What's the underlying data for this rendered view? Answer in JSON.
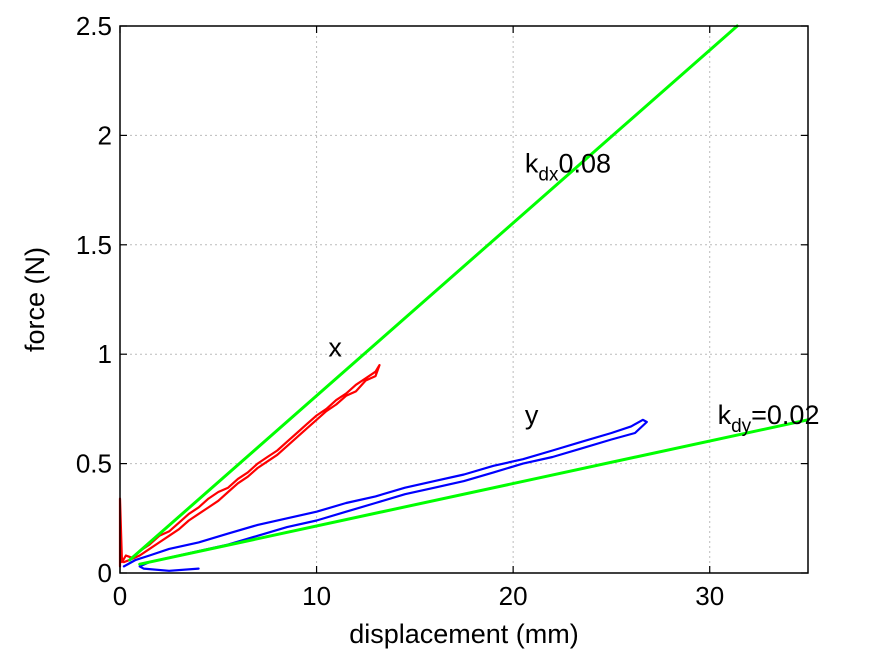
{
  "chart_data": {
    "type": "line",
    "title": "",
    "xlabel": "displacement (mm)",
    "ylabel": "force (N)",
    "xlim": [
      0,
      35
    ],
    "ylim": [
      0,
      2.5
    ],
    "x_ticks": [
      "0",
      "10",
      "20",
      "30"
    ],
    "y_ticks": [
      "0",
      "0.5",
      "1",
      "1.5",
      "2",
      "2.5"
    ],
    "x_tick_values": [
      0,
      10,
      20,
      30
    ],
    "y_tick_values": [
      0,
      0.5,
      1,
      1.5,
      2,
      2.5
    ],
    "grid": true,
    "series": [
      {
        "color": "#ff0000",
        "points": [
          [
            0,
            0.03
          ],
          [
            0,
            0.34
          ],
          [
            0.1,
            0.05
          ],
          [
            0.3,
            0.08
          ],
          [
            0.6,
            0.07
          ],
          [
            1,
            0.1
          ],
          [
            1.5,
            0.13
          ],
          [
            2,
            0.17
          ],
          [
            2.5,
            0.19
          ],
          [
            3,
            0.23
          ],
          [
            3.5,
            0.27
          ],
          [
            4,
            0.3
          ],
          [
            4.5,
            0.34
          ],
          [
            5,
            0.37
          ],
          [
            5.5,
            0.39
          ],
          [
            6,
            0.43
          ],
          [
            6.5,
            0.46
          ],
          [
            7,
            0.5
          ],
          [
            7.5,
            0.53
          ],
          [
            8,
            0.56
          ],
          [
            8.5,
            0.6
          ],
          [
            9,
            0.64
          ],
          [
            9.5,
            0.68
          ],
          [
            10,
            0.72
          ],
          [
            10.5,
            0.75
          ],
          [
            11,
            0.79
          ],
          [
            11.5,
            0.82
          ],
          [
            12,
            0.86
          ],
          [
            12.5,
            0.89
          ],
          [
            13,
            0.92
          ],
          [
            13.2,
            0.95
          ],
          [
            13,
            0.9
          ],
          [
            12.5,
            0.88
          ],
          [
            12,
            0.83
          ],
          [
            11.5,
            0.81
          ],
          [
            11,
            0.77
          ],
          [
            10.5,
            0.74
          ],
          [
            10,
            0.7
          ],
          [
            9.5,
            0.66
          ],
          [
            9,
            0.62
          ],
          [
            8.5,
            0.58
          ],
          [
            8,
            0.54
          ],
          [
            7.5,
            0.51
          ],
          [
            7,
            0.48
          ],
          [
            6.5,
            0.44
          ],
          [
            6,
            0.41
          ],
          [
            5.5,
            0.37
          ],
          [
            5,
            0.33
          ],
          [
            4.5,
            0.3
          ],
          [
            4,
            0.27
          ],
          [
            3.5,
            0.24
          ],
          [
            3,
            0.2
          ],
          [
            2.5,
            0.17
          ],
          [
            2,
            0.14
          ],
          [
            1.5,
            0.11
          ],
          [
            1,
            0.08
          ],
          [
            0.5,
            0.06
          ],
          [
            0.2,
            0.05
          ]
        ]
      },
      {
        "color": "#0000ff",
        "points": [
          [
            0.2,
            0.03
          ],
          [
            0.8,
            0.06
          ],
          [
            1.5,
            0.08
          ],
          [
            2.5,
            0.11
          ],
          [
            4,
            0.14
          ],
          [
            5.5,
            0.18
          ],
          [
            7,
            0.22
          ],
          [
            8.5,
            0.25
          ],
          [
            10,
            0.28
          ],
          [
            11.5,
            0.32
          ],
          [
            13,
            0.35
          ],
          [
            14.5,
            0.39
          ],
          [
            16,
            0.42
          ],
          [
            17.5,
            0.45
          ],
          [
            19,
            0.49
          ],
          [
            20.5,
            0.52
          ],
          [
            22,
            0.56
          ],
          [
            23.5,
            0.6
          ],
          [
            25,
            0.64
          ],
          [
            26,
            0.67
          ],
          [
            26.6,
            0.7
          ],
          [
            26.8,
            0.69
          ],
          [
            26.2,
            0.64
          ],
          [
            25,
            0.61
          ],
          [
            23.5,
            0.57
          ],
          [
            22,
            0.53
          ],
          [
            20.5,
            0.5
          ],
          [
            19,
            0.46
          ],
          [
            17.5,
            0.42
          ],
          [
            16,
            0.39
          ],
          [
            14.5,
            0.36
          ],
          [
            13,
            0.32
          ],
          [
            11.5,
            0.28
          ],
          [
            10,
            0.24
          ],
          [
            8.5,
            0.21
          ],
          [
            7,
            0.17
          ],
          [
            5.5,
            0.13
          ],
          [
            4,
            0.1
          ],
          [
            2.5,
            0.07
          ],
          [
            1.5,
            0.05
          ],
          [
            1,
            0.03
          ],
          [
            1.2,
            0.02
          ],
          [
            2.5,
            0.01
          ],
          [
            4,
            0.02
          ]
        ]
      },
      {
        "color": "#00ff00",
        "points": [
          [
            0.5,
            0.06
          ],
          [
            31.4,
            2.5
          ]
        ]
      },
      {
        "color": "#00ff00",
        "points": [
          [
            1,
            0.04
          ],
          [
            35,
            0.7
          ]
        ]
      }
    ],
    "annotations": [
      {
        "text": "x",
        "x": 10.6,
        "y": 0.99
      },
      {
        "text": "y",
        "x": 20.6,
        "y": 0.68
      },
      {
        "k": "k",
        "sub": "dx",
        "rest": "0.08",
        "x": 20.6,
        "y": 1.83
      },
      {
        "k": "k",
        "sub": "dy",
        "rest": "=0.02",
        "x": 30.4,
        "y": 0.68
      }
    ]
  }
}
